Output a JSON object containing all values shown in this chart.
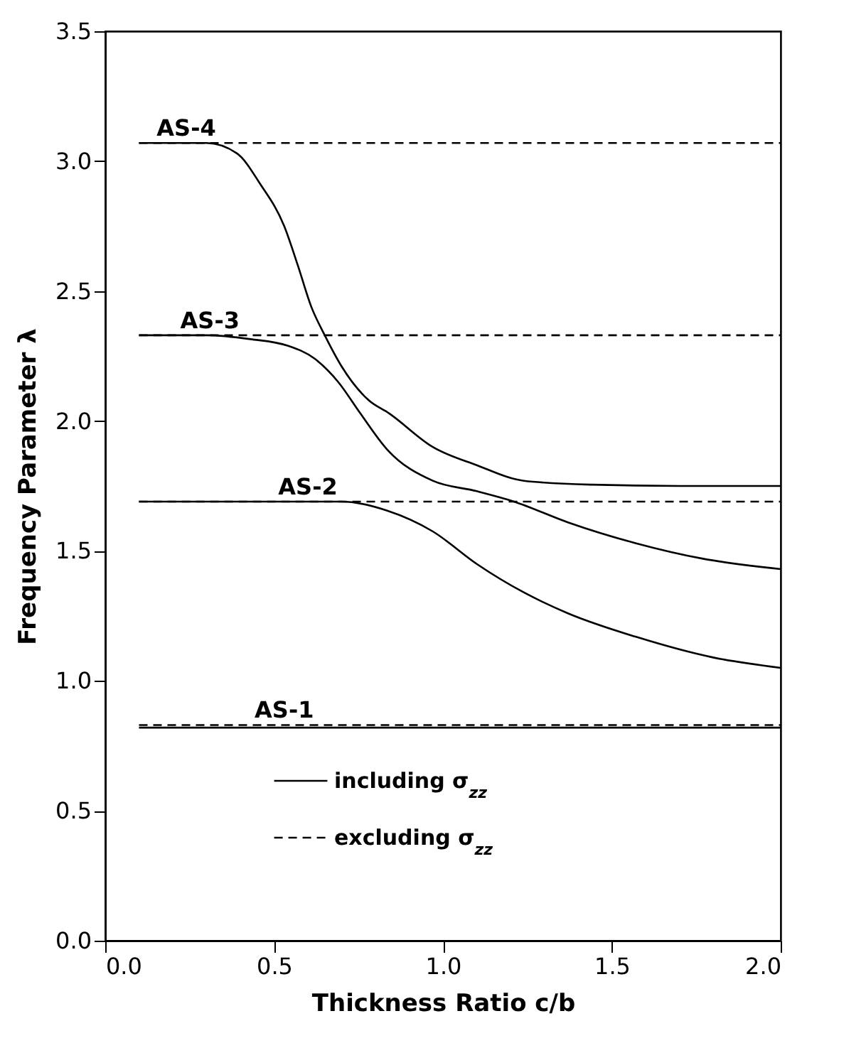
{
  "chart_data": {
    "type": "line",
    "xlabel": "Thickness Ratio c/b",
    "ylabel": "Frequency Parameter λ",
    "xlim": [
      0,
      2
    ],
    "xticks": [
      {
        "value": 0,
        "label": "0.0"
      },
      0.5,
      {
        "value": 1,
        "label": "1.0"
      },
      1.5,
      {
        "value": 2,
        "label": "2.0"
      }
    ],
    "ylim": [
      0,
      3.5
    ],
    "yticks": [
      {
        "value": 0,
        "label": "0.0"
      },
      0.5,
      {
        "value": 1,
        "label": "1.0"
      },
      1.5,
      {
        "value": 2,
        "label": "2.0"
      },
      2.5,
      {
        "value": 3,
        "label": "3.0"
      },
      3.5
    ],
    "grid": false,
    "legend": "bottom left",
    "marker": "none",
    "series": [
      {
        "name": "including σ$_{zz}$",
        "color": "#000000",
        "line_style": "solid",
        "x": [
          0.1,
          0.3,
          0.39,
          0.46,
          0.53,
          0.57,
          0.61,
          0.65,
          0.7,
          0.78,
          0.84,
          0.97,
          1.1,
          1.24,
          1.44,
          1.7,
          2.0
        ],
        "values": [
          3.07,
          3.07,
          3.03,
          2.91,
          2.75,
          2.6,
          2.44,
          2.33,
          2.21,
          2.08,
          2.03,
          1.9,
          1.83,
          1.77,
          1.755,
          1.75,
          1.75
        ]
      },
      {
        "color": "#000000",
        "line_style": "solid",
        "x": [
          0.1,
          0.3,
          0.43,
          0.54,
          0.62,
          0.69,
          0.755,
          0.835,
          0.97,
          1.1,
          1.21,
          1.37,
          1.57,
          1.77,
          2.0
        ],
        "values": [
          2.33,
          2.33,
          2.315,
          2.29,
          2.24,
          2.15,
          2.03,
          1.89,
          1.77,
          1.73,
          1.69,
          1.61,
          1.53,
          1.47,
          1.43
        ]
      },
      {
        "color": "#000000",
        "line_style": "solid",
        "x": [
          0.1,
          0.5,
          0.7,
          0.835,
          0.97,
          1.1,
          1.24,
          1.37,
          1.57,
          1.8,
          2.0
        ],
        "values": [
          1.69,
          1.69,
          1.69,
          1.655,
          1.575,
          1.45,
          1.34,
          1.26,
          1.17,
          1.09,
          1.05
        ]
      },
      {
        "color": "#000000",
        "line_style": "solid",
        "x": [
          0.1,
          2.0
        ],
        "values": [
          0.82,
          0.82
        ]
      },
      {
        "name": "excluding σ$_{zz}$",
        "color": "#000000",
        "line_style": "dashed",
        "x": [
          0.1,
          2.0
        ],
        "values": [
          3.07,
          3.07
        ]
      },
      {
        "color": "#000000",
        "line_style": "dashed",
        "x": [
          0.1,
          2.0
        ],
        "values": [
          2.33,
          2.33
        ]
      },
      {
        "color": "#000000",
        "line_style": "dashed",
        "x": [
          0.1,
          2.0
        ],
        "values": [
          1.69,
          1.69
        ]
      },
      {
        "color": "#000000",
        "line_style": "dashed",
        "x": [
          0.1,
          2.0
        ],
        "values": [
          0.83,
          0.83
        ]
      }
    ],
    "annotations": [
      {
        "text": "AS-4",
        "x": 0.24,
        "y": 3.07
      },
      {
        "text": "AS-3",
        "x": 0.31,
        "y": 2.33
      },
      {
        "text": "AS-2",
        "x": 0.6,
        "y": 1.69
      },
      {
        "text": "AS-1",
        "x": 0.53,
        "y": 0.83
      }
    ]
  }
}
